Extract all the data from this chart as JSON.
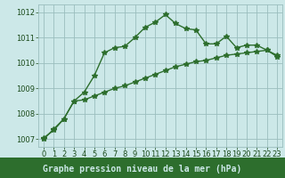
{
  "line1_x": [
    0,
    1,
    2,
    3,
    4,
    5,
    6,
    7,
    8,
    9,
    10,
    11,
    12,
    13,
    14,
    15,
    16,
    17,
    18,
    19,
    20,
    21,
    22,
    23
  ],
  "line1_y": [
    1007.0,
    1007.4,
    1007.8,
    1008.5,
    1008.85,
    1009.5,
    1010.4,
    1010.6,
    1010.65,
    1011.0,
    1011.4,
    1011.6,
    1011.9,
    1011.55,
    1011.35,
    1011.3,
    1010.75,
    1010.75,
    1011.05,
    1010.6,
    1010.7,
    1010.7,
    1010.5,
    1010.25
  ],
  "line2_x": [
    0,
    1,
    2,
    3,
    4,
    5,
    6,
    7,
    8,
    9,
    10,
    11,
    12,
    13,
    14,
    15,
    16,
    17,
    18,
    19,
    20,
    21,
    22,
    23
  ],
  "line2_y": [
    1007.05,
    1007.35,
    1007.8,
    1008.5,
    1008.55,
    1008.7,
    1008.85,
    1009.0,
    1009.1,
    1009.25,
    1009.4,
    1009.55,
    1009.7,
    1009.85,
    1009.95,
    1010.05,
    1010.1,
    1010.2,
    1010.3,
    1010.35,
    1010.4,
    1010.45,
    1010.5,
    1010.3
  ],
  "line_color": "#2d6e2d",
  "bg_color": "#cce8e8",
  "grid_color": "#9abebe",
  "xlabel": "Graphe pression niveau de la mer (hPa)",
  "xlabel_bg": "#2d6e2d",
  "xlabel_fg": "#cce8e8",
  "xlim": [
    -0.5,
    23.5
  ],
  "ylim": [
    1006.7,
    1012.3
  ],
  "yticks": [
    1007,
    1008,
    1009,
    1010,
    1011,
    1012
  ],
  "xticks": [
    0,
    1,
    2,
    3,
    4,
    5,
    6,
    7,
    8,
    9,
    10,
    11,
    12,
    13,
    14,
    15,
    16,
    17,
    18,
    19,
    20,
    21,
    22,
    23
  ],
  "marker": "*",
  "markersize": 4,
  "linewidth": 1.0,
  "xlabel_fontsize": 7.0,
  "tick_fontsize": 6.0,
  "tick_color": "#1a4a1a"
}
